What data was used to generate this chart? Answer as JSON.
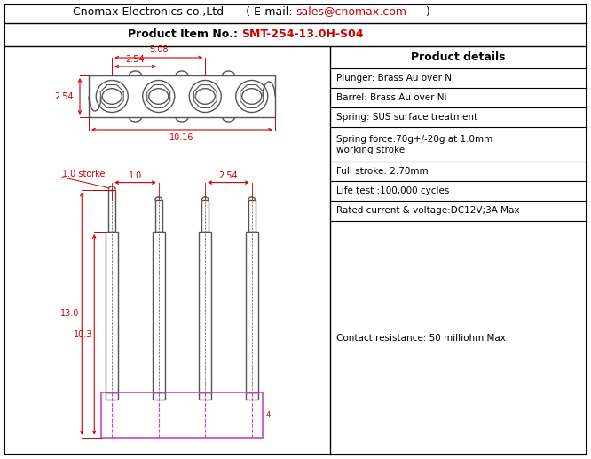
{
  "title_line1_black": "Cnomax Electronics co.,Ltd——( E-mail: ",
  "title_line1_red": "sales@cnomax.com",
  "title_line1_black2": ")",
  "title_line2_black": "Product Item No.: ",
  "title_line2_red": "SMT-254-13.0H-S04",
  "product_details_title": "Product details",
  "product_details": [
    "Plunger: Brass Au over Ni",
    "Barrel: Brass Au over Ni",
    "Spring: SUS surface treatment",
    "Spring force:70g+/-20g at 1.0mm\nworking stroke",
    "Full stroke: 2.70mm",
    "Life test :100,000 cycles",
    "Rated current & voltage:DC12V;3A Max",
    "Contact resistance: 50 milliohm Max"
  ],
  "dim_color": "#cc0000",
  "drawing_color": "#555555",
  "magenta_color": "#cc44cc",
  "bg_color": "#ffffff",
  "border_color": "#000000",
  "row_has_two_lines": [
    false,
    false,
    false,
    true,
    false,
    false,
    false,
    false
  ]
}
